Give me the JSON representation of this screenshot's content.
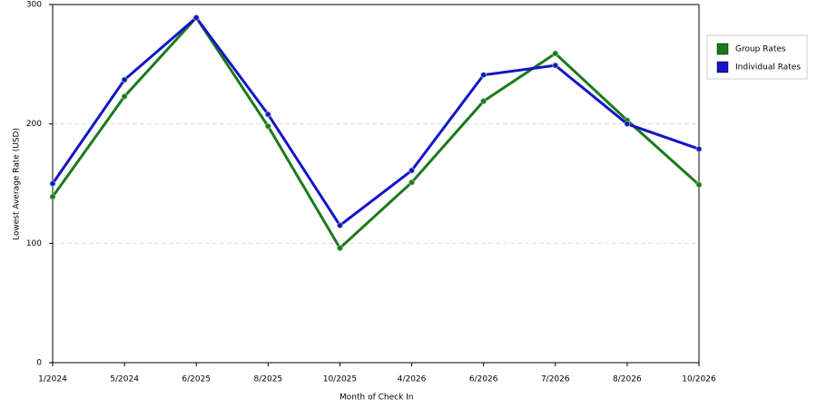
{
  "chart_data": {
    "type": "line",
    "x_label": "Month of Check In",
    "y_label": "Lowest Average Rate (USD)",
    "categories": [
      "1/2024",
      "5/2024",
      "6/2025",
      "8/2025",
      "10/2025",
      "4/2026",
      "6/2026",
      "7/2026",
      "8/2026",
      "10/2026"
    ],
    "series": [
      {
        "name": "Group Rates",
        "color": "#1a7a1a",
        "values": [
          139,
          223,
          289,
          198,
          96,
          151,
          219,
          259,
          203,
          149
        ]
      },
      {
        "name": "Individual Rates",
        "color": "#1414c8",
        "values": [
          150,
          237,
          289,
          208,
          115,
          161,
          241,
          249,
          200,
          179
        ]
      }
    ],
    "ylim": [
      0,
      300
    ],
    "yticks": [
      0,
      100,
      200,
      300
    ],
    "grid": true
  }
}
